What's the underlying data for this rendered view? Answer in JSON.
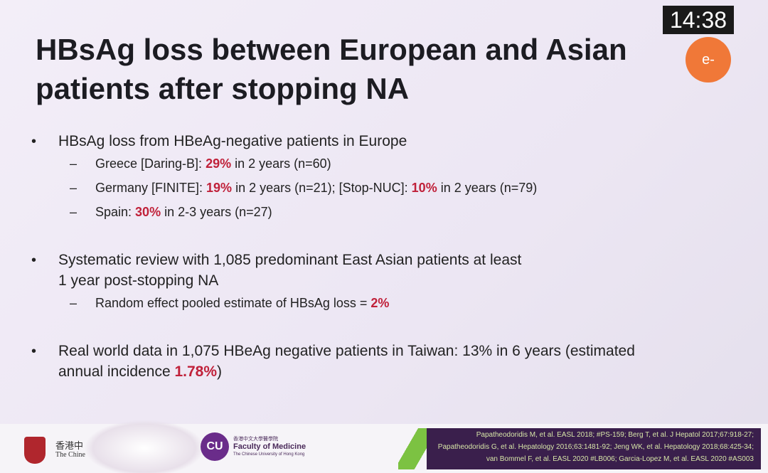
{
  "timer": "14:38",
  "badge": "e-",
  "title": [
    "HBsAg loss between European and Asian",
    "patients after stopping NA"
  ],
  "bullets": [
    {
      "lines": [
        [
          {
            "text": "HBsAg loss from HBeAg-negative patients in Europe"
          }
        ]
      ],
      "subitems": [
        [
          {
            "text": "Greece [Daring-B]: "
          },
          {
            "em": "29%"
          },
          {
            "text": " in 2 years (n=60)"
          }
        ],
        [
          {
            "text": "Germany [FINITE]: "
          },
          {
            "em": "19%"
          },
          {
            "text": " in 2 years (n=21); [Stop-NUC]: "
          },
          {
            "em": "10%"
          },
          {
            "text": " in 2 years (n=79)"
          }
        ],
        [
          {
            "text": "Spain: "
          },
          {
            "em": "30%"
          },
          {
            "text": " in 2-3 years (n=27)"
          }
        ]
      ]
    },
    {
      "lines": [
        [
          {
            "text": "Systematic review with 1,085 predominant East Asian patients at least"
          }
        ],
        [
          {
            "text": "1 year post-stopping NA"
          }
        ]
      ],
      "subitems": [
        [
          {
            "text": "Random effect pooled estimate of HBsAg loss = "
          },
          {
            "em": "2%"
          }
        ]
      ]
    },
    {
      "lines": [
        [
          {
            "text": "Real world data in 1,075 HBeAg negative patients in Taiwan: 13% in 6 years (estimated"
          }
        ],
        [
          {
            "text": "annual incidence "
          },
          {
            "em": "1.78%"
          },
          {
            "text": ")"
          }
        ]
      ],
      "subitems": []
    }
  ],
  "footer": {
    "university": [
      "香港中",
      "The Chine"
    ],
    "faculty_logo": "CU",
    "faculty_cn": "香港中文大學醫學院",
    "faculty": "Faculty of Medicine",
    "faculty_sub": "The Chinese University of Hong Kong",
    "references": [
      "Papatheodoridis M, et al. EASL 2018; #PS-159; Berg T, et al. J Hepatol 2017;67:918-27;",
      "Papatheodoridis G, et al. Hepatology 2016;63:1481-92; Jeng WK, et al. Hepatology 2018;68:425-34;",
      "van Bommel F, et al. EASL 2020 #LB006; Garcia-Lopez M, et al. EASL 2020 #AS003"
    ]
  }
}
